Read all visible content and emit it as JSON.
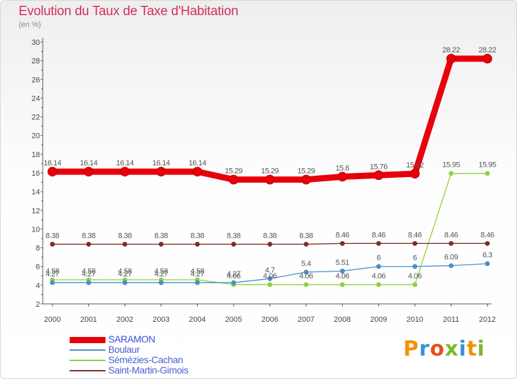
{
  "title": "Evolution du Taux de Taxe d'Habitation",
  "unit": "(en %)",
  "logo_text": "Proxiti",
  "logo_colors": [
    "#f39200",
    "#3a8fd8",
    "#e94e1b",
    "#7ab929",
    "#3a8fd8",
    "#f39200",
    "#7ab929"
  ],
  "chart_data": {
    "type": "line",
    "title": "Evolution du Taux de Taxe d'Habitation",
    "ylabel": "(en %)",
    "xlabel": "",
    "ylim": [
      2,
      30
    ],
    "yticks": [
      2,
      4,
      6,
      8,
      10,
      12,
      14,
      16,
      18,
      20,
      22,
      24,
      26,
      28,
      30
    ],
    "grid": false,
    "legend_position": "bottom-left",
    "categories": [
      "2000",
      "2001",
      "2002",
      "2003",
      "2004",
      "2005",
      "2006",
      "2007",
      "2008",
      "2009",
      "2010",
      "2011",
      "2012"
    ],
    "series": [
      {
        "name": "SARAMON",
        "color": "#e8000b",
        "values": [
          16.14,
          16.14,
          16.14,
          16.14,
          16.14,
          15.29,
          15.29,
          15.29,
          15.6,
          15.76,
          15.92,
          28.22,
          28.22
        ],
        "labels": [
          "16.14",
          "16.14",
          "16.14",
          "16.14",
          "16.14",
          "15.29",
          "15.29",
          "15.29",
          "15.6",
          "15.76",
          "15.92",
          "28.22",
          "28.22"
        ]
      },
      {
        "name": "Boulaur",
        "color": "#4a8ec7",
        "values": [
          4.27,
          4.27,
          4.27,
          4.27,
          4.27,
          4.27,
          4.7,
          5.4,
          5.51,
          6,
          6,
          6.09,
          6.3
        ],
        "labels": [
          "4.27",
          "4.27",
          "4.27",
          "4.27",
          "4.27",
          "4.27",
          "4.7",
          "5.4",
          "5.51",
          "6",
          "6",
          "6.09",
          "6.3"
        ]
      },
      {
        "name": "Sémézies-Cachan",
        "color": "#8fd13f",
        "values": [
          4.58,
          4.58,
          4.58,
          4.58,
          4.58,
          4.06,
          4.06,
          4.06,
          4.06,
          4.06,
          4.06,
          15.95,
          15.95
        ],
        "labels": [
          "4.58",
          "4.58",
          "4.58",
          "4.58",
          "4.58",
          "4.06",
          "4.06",
          "4.06",
          "4.06",
          "4.06",
          "4.06",
          "15.95",
          "15.95"
        ]
      },
      {
        "name": "Saint-Martin-Gimois",
        "color": "#7a2f2f",
        "values": [
          8.38,
          8.38,
          8.38,
          8.38,
          8.38,
          8.38,
          8.38,
          8.38,
          8.46,
          8.46,
          8.46,
          8.46,
          8.46
        ],
        "labels": [
          "8.38",
          "8.38",
          "8.38",
          "8.38",
          "8.38",
          "8.38",
          "8.38",
          "8.38",
          "8.46",
          "8.46",
          "8.46",
          "8.46",
          "8.46"
        ]
      }
    ]
  }
}
